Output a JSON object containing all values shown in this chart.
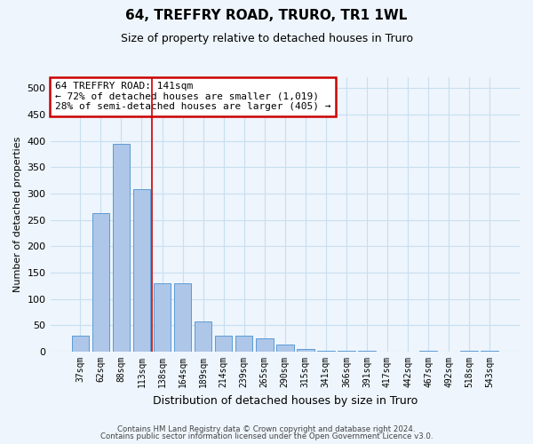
{
  "title": "64, TREFFRY ROAD, TRURO, TR1 1WL",
  "subtitle": "Size of property relative to detached houses in Truro",
  "xlabel": "Distribution of detached houses by size in Truro",
  "ylabel": "Number of detached properties",
  "footer1": "Contains HM Land Registry data © Crown copyright and database right 2024.",
  "footer2": "Contains public sector information licensed under the Open Government Licence v3.0.",
  "categories": [
    "37sqm",
    "62sqm",
    "88sqm",
    "113sqm",
    "138sqm",
    "164sqm",
    "189sqm",
    "214sqm",
    "239sqm",
    "265sqm",
    "290sqm",
    "315sqm",
    "341sqm",
    "366sqm",
    "391sqm",
    "417sqm",
    "442sqm",
    "467sqm",
    "492sqm",
    "518sqm",
    "543sqm"
  ],
  "values": [
    30,
    263,
    395,
    308,
    130,
    130,
    57,
    30,
    30,
    25,
    13,
    5,
    2,
    1,
    1,
    0,
    0,
    1,
    0,
    2,
    2
  ],
  "bar_color": "#aec6e8",
  "bar_edge_color": "#5b9bd5",
  "vline_x": 3.5,
  "vline_color": "#cc0000",
  "annotation_line1": "64 TREFFRY ROAD: 141sqm",
  "annotation_line2": "← 72% of detached houses are smaller (1,019)",
  "annotation_line3": "28% of semi-detached houses are larger (405) →",
  "annotation_box_color": "#cc0000",
  "ylim": [
    0,
    520
  ],
  "yticks": [
    0,
    50,
    100,
    150,
    200,
    250,
    300,
    350,
    400,
    450,
    500
  ],
  "grid_color": "#c8dff0",
  "background_color": "#eef5fc",
  "title_fontsize": 11,
  "subtitle_fontsize": 9,
  "ylabel_fontsize": 8,
  "xlabel_fontsize": 9
}
